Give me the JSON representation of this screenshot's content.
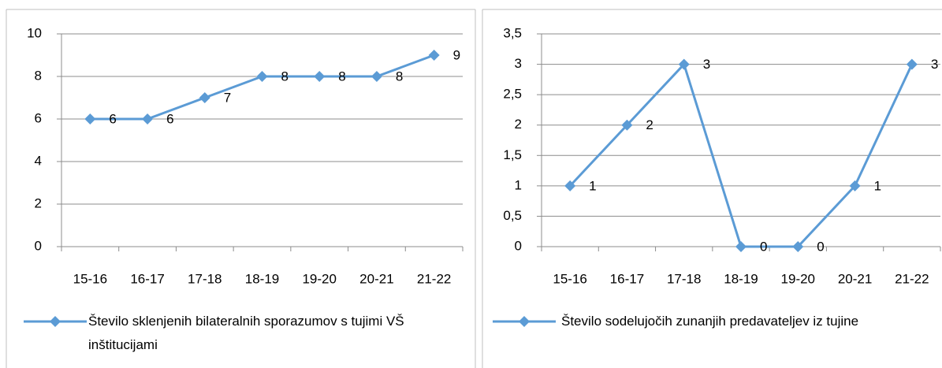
{
  "chart_data": [
    {
      "type": "line",
      "categories": [
        "15-16",
        "16-17",
        "17-18",
        "18-19",
        "19-20",
        "20-21",
        "21-22"
      ],
      "series": [
        {
          "name": "Število sklenjenih bilateralnih sporazumov s tujimi VŠ inštitucijami",
          "color": "#5b9bd5",
          "values": [
            6,
            6,
            7,
            8,
            8,
            8,
            9
          ]
        }
      ],
      "ylim": [
        0,
        10
      ],
      "yticks": [
        0,
        2,
        4,
        6,
        8,
        10
      ],
      "grid": true,
      "legend": "bottom"
    },
    {
      "type": "line",
      "categories": [
        "15-16",
        "16-17",
        "17-18",
        "18-19",
        "19-20",
        "20-21",
        "21-22"
      ],
      "series": [
        {
          "name": "Število sodelujočih zunanjih predavateljev iz tujine",
          "color": "#5b9bd5",
          "values": [
            1,
            2,
            3,
            0,
            0,
            1,
            3
          ]
        }
      ],
      "ylim": [
        0,
        3.5
      ],
      "yticks": [
        0,
        {
          "value": 0.5,
          "label": "0,5"
        },
        1,
        {
          "value": 1.5,
          "label": "1,5"
        },
        2,
        {
          "value": 2.5,
          "label": "2,5"
        },
        3,
        {
          "value": 3.5,
          "label": "3,5"
        }
      ],
      "grid": true,
      "legend": "bottom"
    }
  ]
}
